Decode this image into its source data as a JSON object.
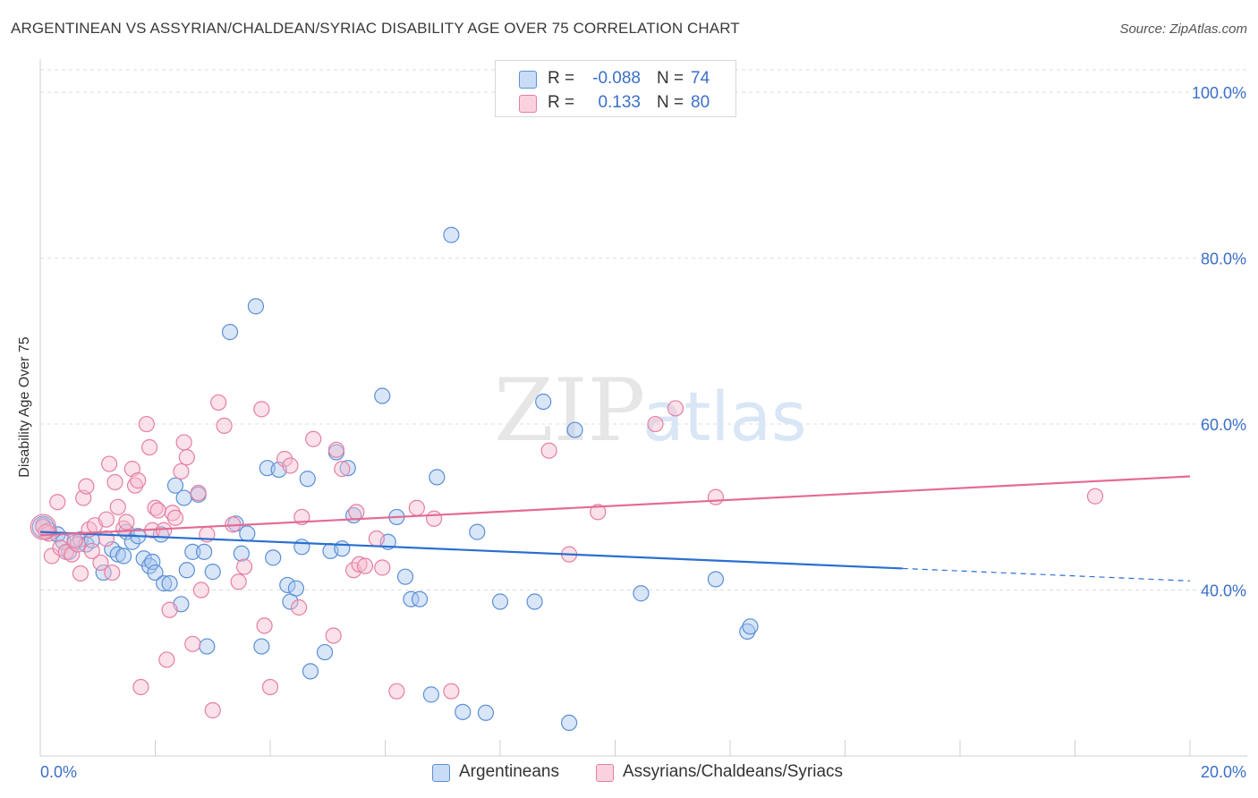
{
  "title": "ARGENTINEAN VS ASSYRIAN/CHALDEAN/SYRIAC DISABILITY AGE OVER 75 CORRELATION CHART",
  "source": "Source: ZipAtlas.com",
  "watermark": "ZIPatlas",
  "colors": {
    "blue_fill": "#a9c8ef",
    "blue_stroke": "#5b8fd6",
    "blue_line": "#2a6fd0",
    "pink_fill": "#f6bccf",
    "pink_stroke": "#e57fa3",
    "pink_line": "#e46b94",
    "axis_text": "#3b6fc9",
    "grid": "#dedede"
  },
  "legend": {
    "rows": [
      {
        "r_label": "R =",
        "r_value": "-0.088",
        "n_label": "N =",
        "n_value": "74",
        "color": "blue"
      },
      {
        "r_label": "R =",
        "r_value": "0.133",
        "n_label": "N =",
        "n_value": "80",
        "color": "pink"
      }
    ]
  },
  "bottom_legend": [
    "Argentineans",
    "Assyrians/Chaldeans/Syriacs"
  ],
  "chart_data": {
    "type": "scatter",
    "xlabel": "",
    "ylabel": "Disability Age Over 75",
    "xlim": [
      0,
      20
    ],
    "ylim": [
      20,
      104
    ],
    "x_tick_labels": [
      "0.0%",
      "20.0%"
    ],
    "y_tick_labels": [
      "100.0%",
      "80.0%",
      "60.0%",
      "40.0%"
    ],
    "y_ticks": [
      100,
      80,
      60,
      40
    ],
    "grid": true,
    "series": [
      {
        "name": "Argentineans",
        "color": "blue",
        "trend": {
          "x0": 0,
          "y0": 47.0,
          "x1": 15.0,
          "y1": 42.6,
          "dash_to_x": 20,
          "dash_to_y": 41.1
        },
        "points": [
          [
            0.05,
            47.8
          ],
          [
            0.15,
            47.2
          ],
          [
            0.3,
            46.7
          ],
          [
            0.4,
            45.8
          ],
          [
            0.5,
            44.6
          ],
          [
            0.6,
            45.7
          ],
          [
            0.7,
            46.1
          ],
          [
            0.8,
            45.5
          ],
          [
            0.9,
            46.0
          ],
          [
            1.1,
            42.1
          ],
          [
            1.25,
            44.9
          ],
          [
            1.35,
            44.3
          ],
          [
            1.45,
            44.1
          ],
          [
            1.5,
            47.0
          ],
          [
            1.6,
            45.8
          ],
          [
            1.7,
            46.5
          ],
          [
            1.8,
            43.8
          ],
          [
            1.9,
            42.9
          ],
          [
            1.95,
            43.4
          ],
          [
            2.0,
            42.1
          ],
          [
            2.1,
            46.7
          ],
          [
            2.15,
            40.8
          ],
          [
            2.25,
            40.8
          ],
          [
            2.35,
            52.6
          ],
          [
            2.45,
            38.3
          ],
          [
            2.5,
            51.1
          ],
          [
            2.55,
            42.4
          ],
          [
            2.65,
            44.6
          ],
          [
            2.75,
            51.5
          ],
          [
            2.85,
            44.6
          ],
          [
            2.9,
            33.2
          ],
          [
            3.0,
            42.2
          ],
          [
            3.3,
            71.1
          ],
          [
            3.4,
            48.0
          ],
          [
            3.5,
            44.4
          ],
          [
            3.6,
            46.8
          ],
          [
            3.75,
            74.2
          ],
          [
            3.85,
            33.2
          ],
          [
            3.95,
            54.7
          ],
          [
            4.05,
            43.9
          ],
          [
            4.15,
            54.5
          ],
          [
            4.3,
            40.6
          ],
          [
            4.35,
            38.6
          ],
          [
            4.45,
            40.2
          ],
          [
            4.55,
            45.2
          ],
          [
            4.65,
            53.4
          ],
          [
            4.7,
            30.2
          ],
          [
            4.95,
            32.5
          ],
          [
            5.05,
            44.7
          ],
          [
            5.15,
            56.6
          ],
          [
            5.25,
            45.0
          ],
          [
            5.35,
            54.7
          ],
          [
            5.45,
            49.0
          ],
          [
            5.95,
            63.4
          ],
          [
            6.05,
            45.8
          ],
          [
            6.2,
            48.8
          ],
          [
            6.35,
            41.6
          ],
          [
            6.45,
            38.9
          ],
          [
            6.6,
            38.9
          ],
          [
            6.8,
            27.4
          ],
          [
            6.9,
            53.6
          ],
          [
            7.15,
            82.8
          ],
          [
            7.35,
            25.3
          ],
          [
            7.6,
            47.0
          ],
          [
            7.75,
            25.2
          ],
          [
            8.0,
            38.6
          ],
          [
            8.6,
            38.6
          ],
          [
            8.75,
            62.7
          ],
          [
            9.2,
            24.0
          ],
          [
            9.3,
            59.3
          ],
          [
            10.45,
            39.6
          ],
          [
            11.75,
            41.3
          ],
          [
            12.3,
            35.0
          ],
          [
            12.35,
            35.6
          ]
        ]
      },
      {
        "name": "Assyrians/Chaldeans/Syriacs",
        "color": "pink",
        "trend": {
          "x0": 0,
          "y0": 46.6,
          "x1": 20,
          "y1": 53.7
        },
        "points": [
          [
            0.05,
            47.6
          ],
          [
            0.15,
            46.8
          ],
          [
            0.2,
            44.1
          ],
          [
            0.3,
            50.6
          ],
          [
            0.35,
            45.1
          ],
          [
            0.45,
            44.6
          ],
          [
            0.55,
            44.3
          ],
          [
            0.65,
            45.5
          ],
          [
            0.7,
            42.0
          ],
          [
            0.75,
            51.1
          ],
          [
            0.8,
            52.5
          ],
          [
            0.85,
            47.3
          ],
          [
            0.95,
            47.8
          ],
          [
            1.05,
            43.3
          ],
          [
            1.15,
            48.5
          ],
          [
            1.2,
            55.2
          ],
          [
            1.25,
            42.1
          ],
          [
            1.3,
            53.0
          ],
          [
            1.35,
            50.0
          ],
          [
            1.45,
            47.4
          ],
          [
            1.5,
            48.2
          ],
          [
            1.6,
            54.6
          ],
          [
            1.65,
            52.6
          ],
          [
            1.7,
            53.2
          ],
          [
            1.75,
            28.3
          ],
          [
            1.85,
            60.0
          ],
          [
            1.9,
            57.2
          ],
          [
            1.95,
            47.2
          ],
          [
            2.0,
            49.9
          ],
          [
            2.05,
            49.6
          ],
          [
            2.15,
            47.2
          ],
          [
            2.2,
            31.6
          ],
          [
            2.25,
            37.6
          ],
          [
            2.3,
            49.3
          ],
          [
            2.35,
            48.7
          ],
          [
            2.45,
            54.3
          ],
          [
            2.5,
            57.8
          ],
          [
            2.55,
            56.0
          ],
          [
            2.65,
            33.5
          ],
          [
            2.75,
            51.7
          ],
          [
            2.8,
            40.0
          ],
          [
            2.9,
            46.7
          ],
          [
            3.0,
            25.5
          ],
          [
            3.1,
            62.6
          ],
          [
            3.2,
            59.8
          ],
          [
            3.35,
            47.9
          ],
          [
            3.45,
            41.0
          ],
          [
            3.55,
            42.8
          ],
          [
            3.85,
            61.8
          ],
          [
            3.9,
            35.7
          ],
          [
            4.0,
            28.3
          ],
          [
            4.25,
            55.8
          ],
          [
            4.35,
            55.0
          ],
          [
            4.5,
            37.9
          ],
          [
            4.55,
            48.8
          ],
          [
            4.75,
            58.2
          ],
          [
            5.1,
            34.5
          ],
          [
            5.15,
            56.9
          ],
          [
            5.25,
            54.6
          ],
          [
            5.45,
            42.4
          ],
          [
            5.5,
            49.4
          ],
          [
            5.55,
            43.1
          ],
          [
            5.65,
            42.9
          ],
          [
            5.85,
            46.2
          ],
          [
            5.95,
            42.7
          ],
          [
            6.2,
            27.8
          ],
          [
            6.55,
            49.9
          ],
          [
            6.85,
            48.6
          ],
          [
            7.15,
            27.8
          ],
          [
            8.85,
            56.8
          ],
          [
            9.2,
            44.3
          ],
          [
            9.7,
            49.4
          ],
          [
            10.7,
            60.0
          ],
          [
            11.05,
            61.9
          ],
          [
            11.75,
            51.2
          ],
          [
            18.35,
            51.3
          ],
          [
            0.1,
            47.0
          ],
          [
            0.6,
            46.0
          ],
          [
            0.9,
            44.7
          ],
          [
            1.15,
            46.2
          ]
        ]
      }
    ]
  }
}
